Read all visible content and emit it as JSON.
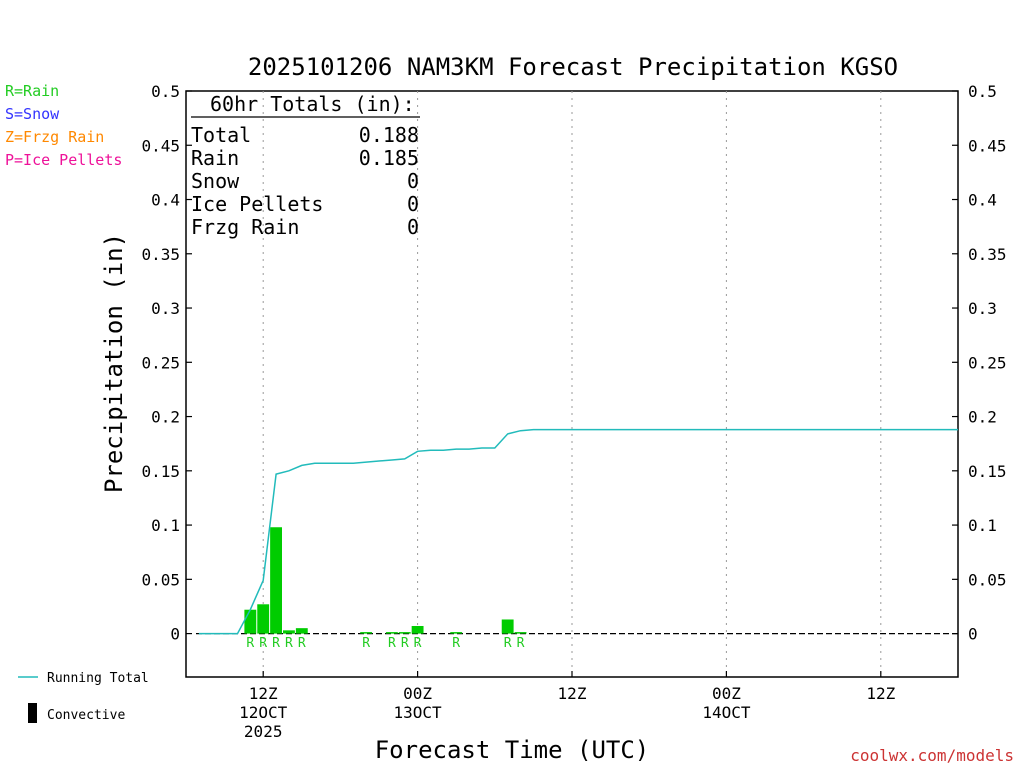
{
  "title": "2025101206 NAM3KM Forecast Precipitation KGSO",
  "legend_types": [
    {
      "label": "R=Rain",
      "color": "#22cc22"
    },
    {
      "label": "S=Snow",
      "color": "#3333ff"
    },
    {
      "label": "Z=Frzg Rain",
      "color": "#ff8800"
    },
    {
      "label": "P=Ice Pellets",
      "color": "#ee1199"
    }
  ],
  "totals": {
    "header": "60hr Totals (in):",
    "rows": [
      {
        "label": "Total",
        "value": "0.188"
      },
      {
        "label": "Rain",
        "value": "0.185"
      },
      {
        "label": "Snow",
        "value": "0"
      },
      {
        "label": "Ice Pellets",
        "value": "0"
      },
      {
        "label": "Frzg Rain",
        "value": "0"
      }
    ]
  },
  "legend_bottom": {
    "running_total": "Running Total",
    "convective": "Convective"
  },
  "credit": "coolwx.com/models",
  "colors": {
    "running_total": "#22bbbb",
    "bars": "#00cc00",
    "rain_label": "#22cc22"
  },
  "chart_data": {
    "type": "bar",
    "xlabel": "Forecast Time (UTC)",
    "ylabel": "Precipitation (in)",
    "xlim": [
      0,
      60
    ],
    "ylim": [
      -0.04,
      0.5
    ],
    "y_ticks": [
      "0.5",
      "0.45",
      "0.4",
      "0.35",
      "0.3",
      "0.25",
      "0.2",
      "0.15",
      "0.1",
      "0.05",
      "0"
    ],
    "x_ticks": [
      {
        "hour": 6,
        "lines": [
          "12Z",
          "12OCT",
          "2025"
        ]
      },
      {
        "hour": 18,
        "lines": [
          "00Z",
          "13OCT"
        ]
      },
      {
        "hour": 30,
        "lines": [
          "12Z"
        ]
      },
      {
        "hour": 42,
        "lines": [
          "00Z",
          "14OCT"
        ]
      },
      {
        "hour": 54,
        "lines": [
          "12Z"
        ]
      }
    ],
    "grid": "vertical dotted at x ticks",
    "bars": [
      {
        "hour": 5,
        "value": 0.022
      },
      {
        "hour": 6,
        "value": 0.027
      },
      {
        "hour": 7,
        "value": 0.098
      },
      {
        "hour": 8,
        "value": 0.003
      },
      {
        "hour": 9,
        "value": 0.005
      },
      {
        "hour": 14,
        "value": 0.001
      },
      {
        "hour": 16,
        "value": 0.001
      },
      {
        "hour": 17,
        "value": 0.001
      },
      {
        "hour": 18,
        "value": 0.007
      },
      {
        "hour": 21,
        "value": 0.001
      },
      {
        "hour": 25,
        "value": 0.013
      },
      {
        "hour": 26,
        "value": 0.001
      }
    ],
    "precip_type_labels": [
      {
        "hour": 5,
        "label": "R"
      },
      {
        "hour": 6,
        "label": "R"
      },
      {
        "hour": 7,
        "label": "R"
      },
      {
        "hour": 8,
        "label": "R"
      },
      {
        "hour": 9,
        "label": "R"
      },
      {
        "hour": 14,
        "label": "R"
      },
      {
        "hour": 16,
        "label": "R"
      },
      {
        "hour": 17,
        "label": "R"
      },
      {
        "hour": 18,
        "label": "R"
      },
      {
        "hour": 21,
        "label": "R"
      },
      {
        "hour": 25,
        "label": "R"
      },
      {
        "hour": 26,
        "label": "R"
      }
    ],
    "running_total": [
      [
        1,
        0
      ],
      [
        2,
        0
      ],
      [
        3,
        0
      ],
      [
        4,
        0
      ],
      [
        5,
        0.022
      ],
      [
        6,
        0.049
      ],
      [
        7,
        0.147
      ],
      [
        8,
        0.15
      ],
      [
        9,
        0.155
      ],
      [
        10,
        0.157
      ],
      [
        11,
        0.157
      ],
      [
        12,
        0.157
      ],
      [
        13,
        0.157
      ],
      [
        14,
        0.158
      ],
      [
        15,
        0.159
      ],
      [
        16,
        0.16
      ],
      [
        17,
        0.161
      ],
      [
        18,
        0.168
      ],
      [
        19,
        0.169
      ],
      [
        20,
        0.169
      ],
      [
        21,
        0.17
      ],
      [
        22,
        0.17
      ],
      [
        23,
        0.171
      ],
      [
        24,
        0.171
      ],
      [
        25,
        0.184
      ],
      [
        26,
        0.187
      ],
      [
        27,
        0.188
      ],
      [
        30,
        0.188
      ],
      [
        36,
        0.188
      ],
      [
        42,
        0.188
      ],
      [
        48,
        0.188
      ],
      [
        54,
        0.188
      ],
      [
        60,
        0.188
      ]
    ]
  }
}
